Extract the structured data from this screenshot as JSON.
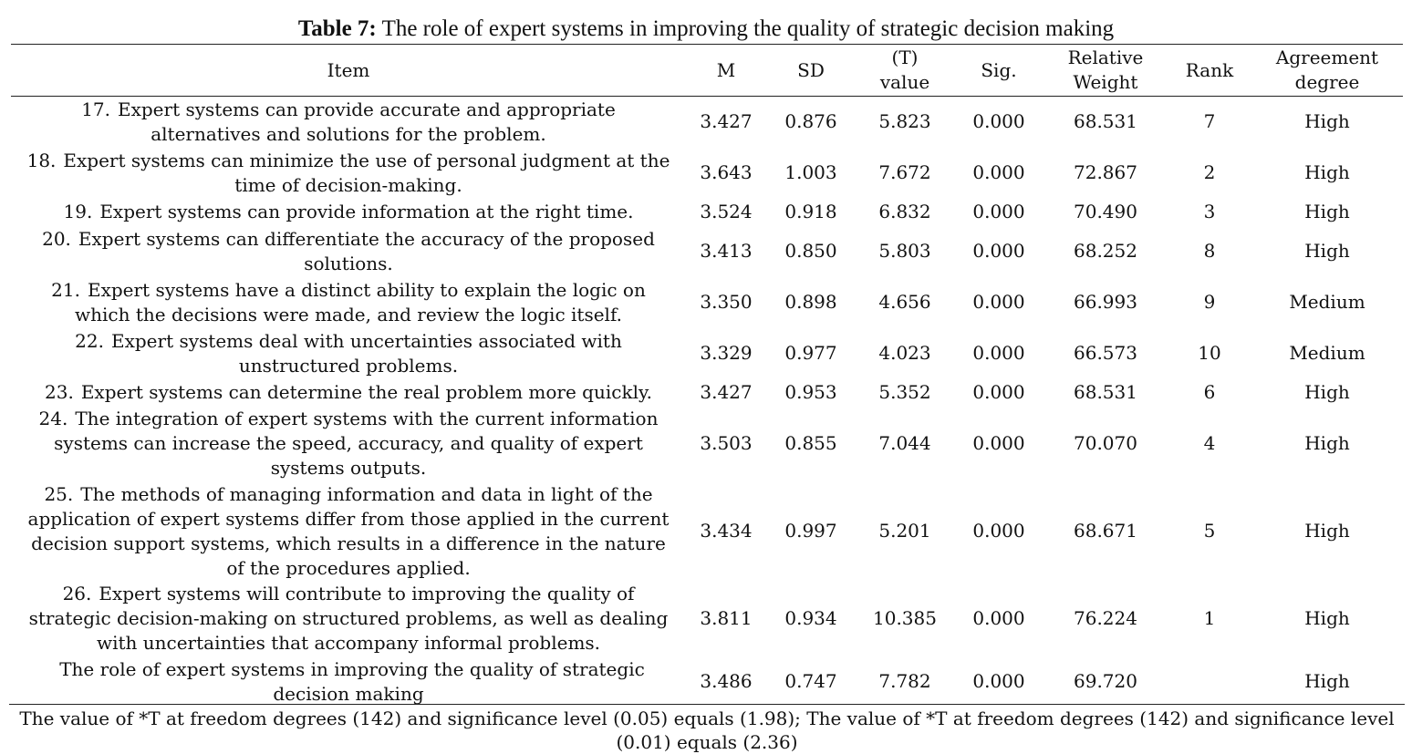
{
  "caption": {
    "label": "Table 7:",
    "text": "The role of expert systems in improving the quality of strategic decision making"
  },
  "headers": {
    "item": "Item",
    "m": "M",
    "sd": "SD",
    "t_line1": "(T)",
    "t_line2": "value",
    "sig": "Sig.",
    "rw_line1": "Relative",
    "rw_line2": "Weight",
    "rank": "Rank",
    "ad_line1": "Agreement",
    "ad_line2": "degree"
  },
  "rows": [
    {
      "num": "17.",
      "text": "Expert systems can provide accurate and appropriate alternatives and solutions for the problem.",
      "m": "3.427",
      "sd": "0.876",
      "t": "5.823",
      "sig": "0.000",
      "rw": "68.531",
      "rank": "7",
      "degree": "High"
    },
    {
      "num": "18.",
      "text": "Expert systems can minimize the use of personal judgment at the time of decision-making.",
      "m": "3.643",
      "sd": "1.003",
      "t": "7.672",
      "sig": "0.000",
      "rw": "72.867",
      "rank": "2",
      "degree": "High"
    },
    {
      "num": "19.",
      "text": "Expert systems can provide information at the right time.",
      "m": "3.524",
      "sd": "0.918",
      "t": "6.832",
      "sig": "0.000",
      "rw": "70.490",
      "rank": "3",
      "degree": "High"
    },
    {
      "num": "20.",
      "text": "Expert systems can differentiate the accuracy of the proposed solutions.",
      "m": "3.413",
      "sd": "0.850",
      "t": "5.803",
      "sig": "0.000",
      "rw": "68.252",
      "rank": "8",
      "degree": "High"
    },
    {
      "num": "21.",
      "text": "Expert systems have a distinct ability to explain the logic on which the decisions were made, and review the logic itself.",
      "m": "3.350",
      "sd": "0.898",
      "t": "4.656",
      "sig": "0.000",
      "rw": "66.993",
      "rank": "9",
      "degree": "Medium"
    },
    {
      "num": "22.",
      "text": "Expert systems deal with uncertainties associated with unstructured problems.",
      "m": "3.329",
      "sd": "0.977",
      "t": "4.023",
      "sig": "0.000",
      "rw": "66.573",
      "rank": "10",
      "degree": "Medium"
    },
    {
      "num": "23.",
      "text": "Expert systems can determine the real problem more quickly.",
      "m": "3.427",
      "sd": "0.953",
      "t": "5.352",
      "sig": "0.000",
      "rw": "68.531",
      "rank": "6",
      "degree": "High"
    },
    {
      "num": "24.",
      "text": "The integration of expert systems with the current information systems can increase the speed, accuracy, and quality of expert systems outputs.",
      "m": "3.503",
      "sd": "0.855",
      "t": "7.044",
      "sig": "0.000",
      "rw": "70.070",
      "rank": "4",
      "degree": "High"
    },
    {
      "num": "25.",
      "text": "The methods of managing information and data in light of the application of expert systems differ from those applied in the current decision support systems, which results in a difference in the nature of the procedures applied.",
      "m": "3.434",
      "sd": "0.997",
      "t": "5.201",
      "sig": "0.000",
      "rw": "68.671",
      "rank": "5",
      "degree": "High"
    },
    {
      "num": "26.",
      "text": "Expert systems will contribute to improving the quality of strategic decision-making on structured problems, as well as dealing with uncertainties that accompany informal problems.",
      "m": "3.811",
      "sd": "0.934",
      "t": "10.385",
      "sig": "0.000",
      "rw": "76.224",
      "rank": "1",
      "degree": "High"
    },
    {
      "num": "",
      "text": "The role of expert systems in improving the quality of strategic decision making",
      "m": "3.486",
      "sd": "0.747",
      "t": "7.782",
      "sig": "0.000",
      "rw": "69.720",
      "rank": "",
      "degree": "High"
    }
  ],
  "footnote": "The value of *T at freedom degrees (142) and significance level (0.05) equals (1.98); The value of *T at freedom degrees (142) and significance level (0.01) equals (2.36)"
}
